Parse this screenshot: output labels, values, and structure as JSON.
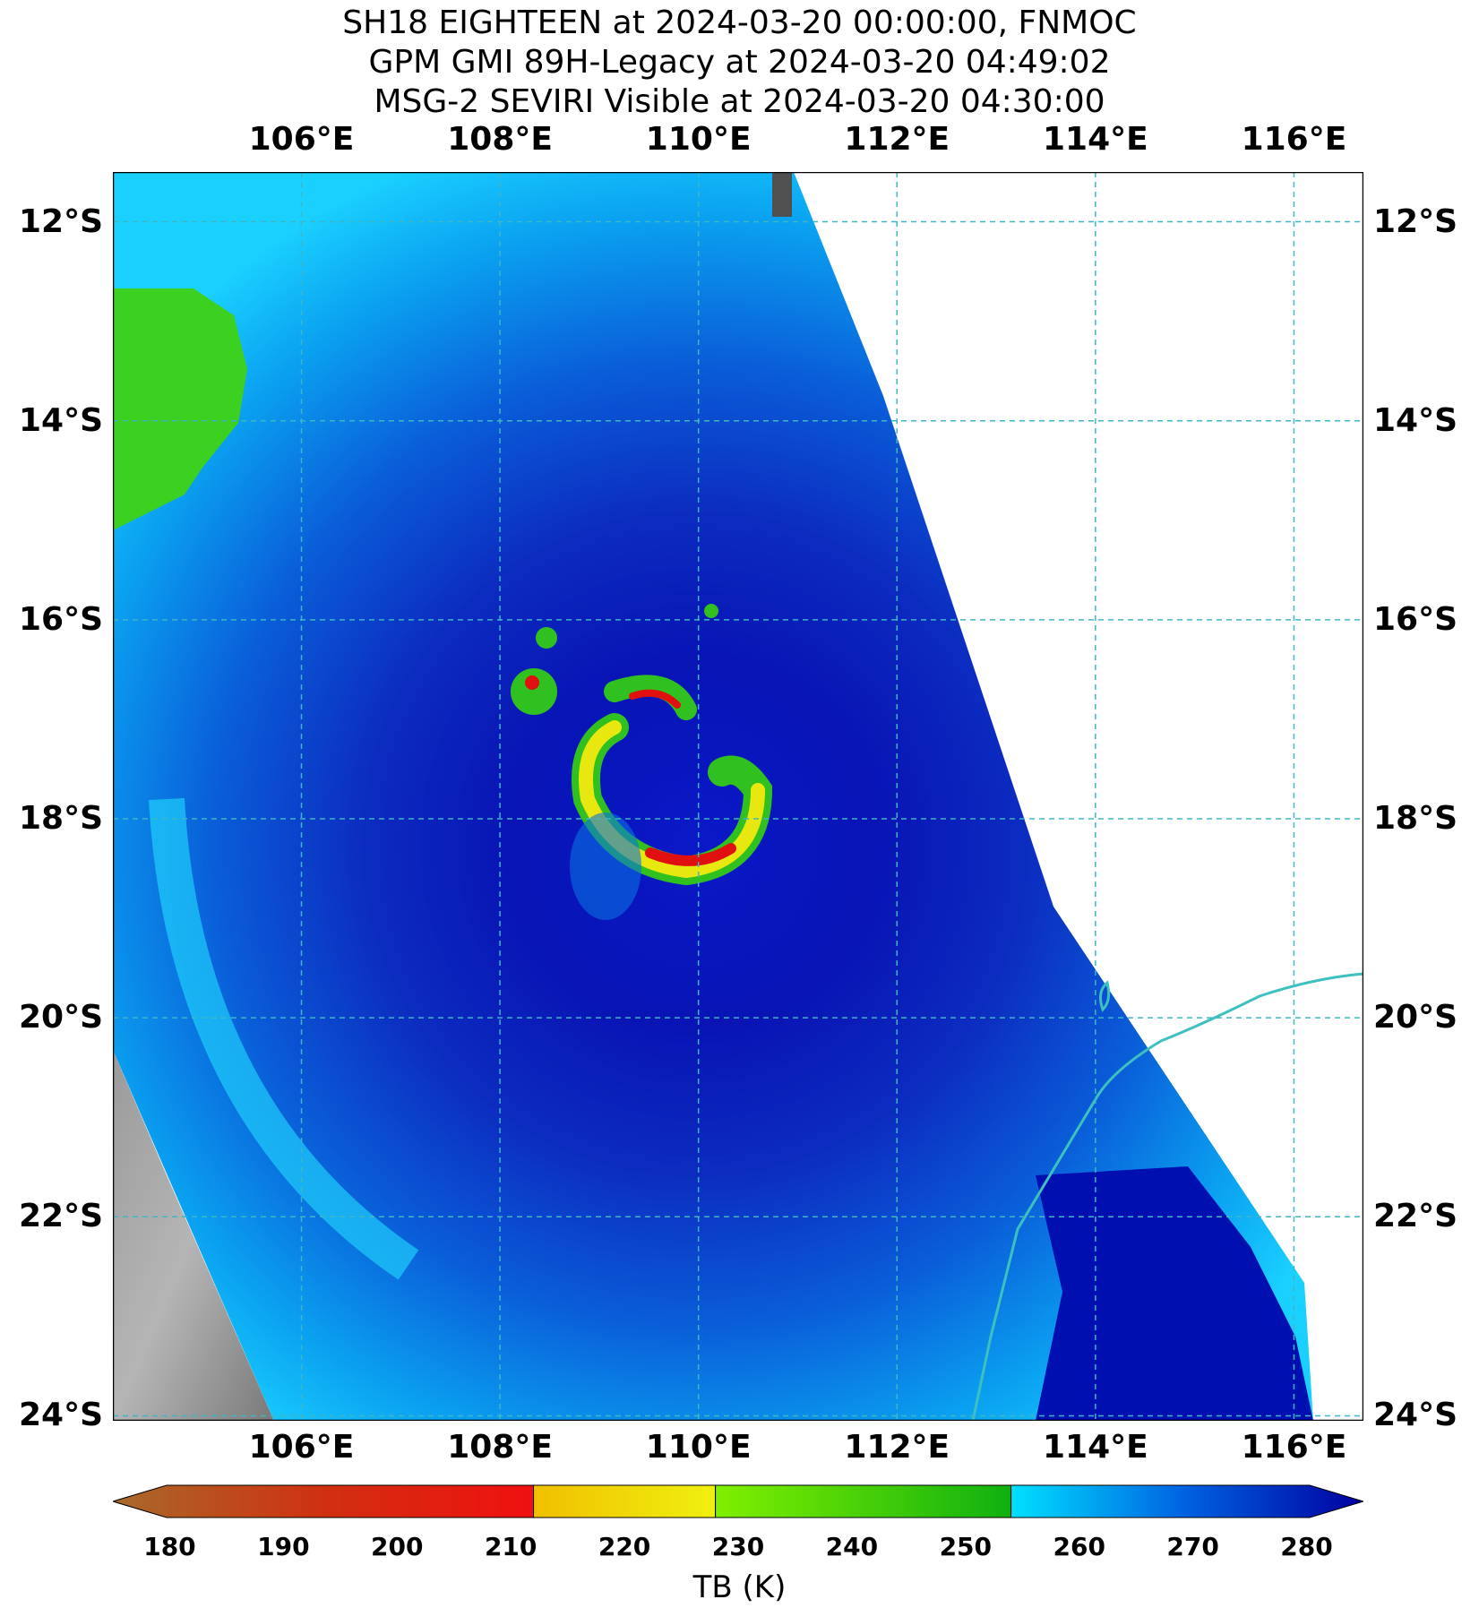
{
  "titles": [
    "SH18 EIGHTEEN at 2024-03-20 00:00:00, FNMOC",
    "GPM GMI 89H-Legacy at 2024-03-20 04:49:02",
    "MSG-2 SEVIRI Visible at 2024-03-20 04:30:00"
  ],
  "map": {
    "lon_min": 104.1,
    "lon_max": 116.7,
    "lat_min": -24.05,
    "lat_max": -11.5,
    "lon_ticks": [
      {
        "value": 106,
        "label": "106°E"
      },
      {
        "value": 108,
        "label": "108°E"
      },
      {
        "value": 110,
        "label": "110°E"
      },
      {
        "value": 112,
        "label": "112°E"
      },
      {
        "value": 114,
        "label": "114°E"
      },
      {
        "value": 116,
        "label": "116°E"
      }
    ],
    "lat_ticks": [
      {
        "value": -12,
        "label": "12°S"
      },
      {
        "value": -14,
        "label": "14°S"
      },
      {
        "value": -16,
        "label": "16°S"
      },
      {
        "value": -18,
        "label": "18°S"
      },
      {
        "value": -20,
        "label": "20°S"
      },
      {
        "value": -22,
        "label": "22°S"
      },
      {
        "value": -24,
        "label": "24°S"
      }
    ],
    "storm_center": {
      "lon": 109.9,
      "lat": -18.2
    },
    "gridline_color": "#3fb6c4",
    "coastline_color": "#3cc0c0"
  },
  "colorbar": {
    "label": "TB (K)",
    "ticks": [
      "180",
      "190",
      "200",
      "210",
      "220",
      "230",
      "240",
      "250",
      "260",
      "270",
      "280"
    ],
    "range": [
      175,
      285
    ],
    "segments": [
      {
        "from": 175,
        "to": 212,
        "colors": [
          "#a86a2a",
          "#d03010",
          "#f01010"
        ]
      },
      {
        "from": 212,
        "to": 228,
        "colors": [
          "#f0c000",
          "#f0f010"
        ]
      },
      {
        "from": 228,
        "to": 254,
        "colors": [
          "#80f000",
          "#10b010"
        ]
      },
      {
        "from": 254,
        "to": 285,
        "colors": [
          "#00e0ff",
          "#0060e0",
          "#0000a0"
        ]
      }
    ]
  }
}
